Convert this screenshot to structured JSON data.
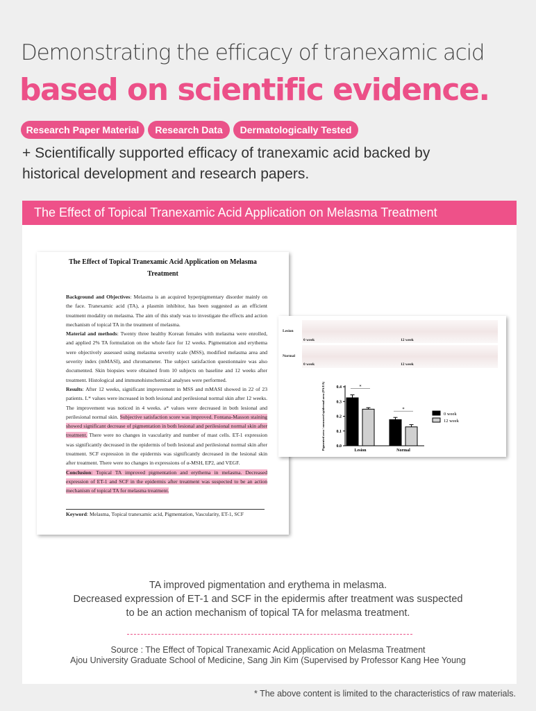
{
  "heading": {
    "line1": "Demonstrating the efficacy of tranexamic acid",
    "line2": "based on scientific evidence."
  },
  "tags": [
    "Research Paper Material",
    "Research Data",
    "Dermatologically Tested"
  ],
  "subtitle": {
    "line1": "+ Scientifically supported efficacy of tranexamic acid backed by",
    "line2": "historical development and research papers."
  },
  "panel_title": "The Effect of Topical Tranexamic Acid Application on Melasma Treatment",
  "paper": {
    "title1": "The Effect of Topical Tranexamic Acid Application on Melasma",
    "title2": "Treatment",
    "bg_label": "Background and Objectives",
    "bg_text": ": Melasma is an acquired hyperpigmentary disorder mainly on the face. Tranexamic acid (TA), a plasmin inhibitor, has been suggested as an efficient treatment modality on melasma. The aim of this study was to investigate the effects and action mechanism of topical TA in the treatment of melasma.",
    "mm_label": "Material and methods",
    "mm_text": ": Twenty three healthy Korean females with melasma were enrolled, and applied 2% TA formulation on the whole face for 12 weeks. Pigmentation and erythema were objectively assessed using melasma severity scale (MSS), modified melasma area and severity index (mMASI), and chromameter. The subject satisfaction questionnaire was also documented. Skin biopsies were obtained from 10 subjects on baseline and 12 weeks after treatment. Histological and immunohistochemical analyses were performed.",
    "res_label": "Results",
    "res_text1": ": After 12 weeks, significant improvement in MSS and mMASI showed in 22 of 23 patients. L* values were increased in both lesional and perilesional normal skin after 12 weeks. The improvement was noticed in 4 weeks. a* values were decreased in both lesional and perilesional normal skin. ",
    "res_hl": "Subjective satisfaction score was improved. Fontana-Masson staining showed significant decrease of pigmentation in both lesional and perilesional normal skin after treatment.",
    "res_text2": " There were no changes in vascularity and number of mast cells. ET-1 expression was significantly decreased in the epidermis of both lesional and perilesional normal skin after treatment. SCF expression in the epidermis was significantly decreased in the lesional skin after treatment. There were no changes in expressions of α-MSH, EP2, and VEGF.",
    "con_label": "Conclusion",
    "con_text": ": Topical TA improved pigmentation and erythema in melasma. Decreased expression of ET-1 and SCF in the epidermis after treatment was suspected to be an action mechanism of topical TA for melasma treatment.",
    "kw_label": "Keyword",
    "kw_text": ": Melasma, Topical tranexamic acid, Pigmentation, Vascularity, ET-1, SCF"
  },
  "figure": {
    "row_labels": [
      "Lesion",
      "Normal"
    ],
    "time_labels": [
      "0 week",
      "12 week"
    ]
  },
  "chart_data": {
    "type": "bar",
    "categories": [
      "Lesion",
      "Normal"
    ],
    "series": [
      {
        "name": "0 week",
        "values": [
          0.325,
          0.177
        ],
        "errors": [
          0.02,
          0.015
        ],
        "color": "#000000"
      },
      {
        "name": "12 week",
        "values": [
          0.248,
          0.128
        ],
        "errors": [
          0.01,
          0.015
        ],
        "color": "#d0d0d0"
      }
    ],
    "ylabel": "Pigmented area / measured epidermal area (PA/EA)",
    "yticks": [
      "0.0",
      "0.1",
      "0.2",
      "0.3",
      "0.4"
    ],
    "ylim": [
      0,
      0.4
    ],
    "significance": [
      "*",
      "*"
    ],
    "legend": "right"
  },
  "summary": [
    "TA improved pigmentation and erythema in melasma.",
    "Decreased expression of ET-1 and SCF in the epidermis after treatment was suspected",
    "to be an action mechanism of topical TA for melasma treatment."
  ],
  "source": [
    "Source : The Effect of Topical Tranexamic Acid Application on Melasma Treatment",
    "Ajou University Graduate School of Medicine, Sang Jin Kim (Supervised by Professor Kang Hee Young"
  ],
  "footnote": "* The above content is limited to the characteristics of raw materials.",
  "colors": {
    "accent": "#ec5088",
    "highlight": "#f5b3cb",
    "background": "#efefef"
  }
}
